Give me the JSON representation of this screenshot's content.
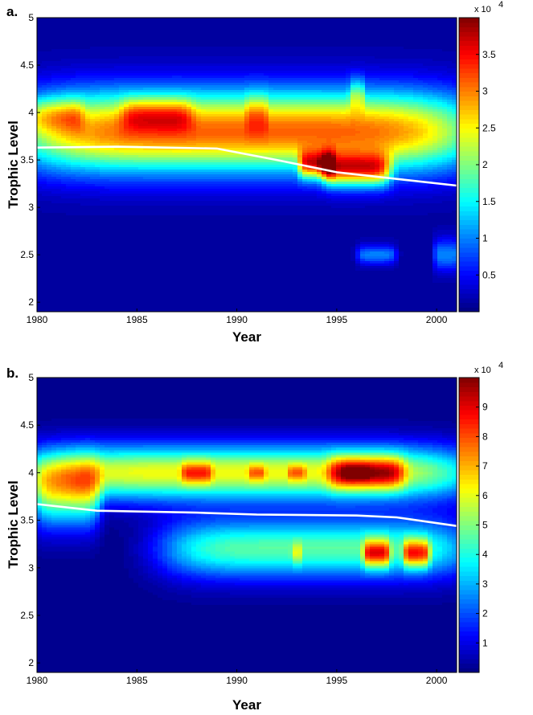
{
  "chart_data": [
    {
      "panel_label": "a.",
      "type": "heatmap",
      "xlabel": "Year",
      "ylabel": "Trophic Level",
      "xlim": [
        1980,
        2001
      ],
      "ylim": [
        1.9,
        5
      ],
      "xticks": [
        1980,
        1985,
        1990,
        1995,
        2000
      ],
      "yticks": [
        2,
        2.5,
        3,
        3.5,
        4,
        4.5,
        5
      ],
      "colorbar": {
        "range": [
          0,
          40000
        ],
        "ticks": [
          0.5,
          1,
          1.5,
          2,
          2.5,
          3,
          3.5
        ],
        "multiplier_label": "x 10",
        "multiplier_exponent": "4"
      },
      "blobs": [
        {
          "x": 1990.5,
          "y": 3.8,
          "sx": 10.5,
          "sy": 0.3,
          "v": 30000
        },
        {
          "x": 1981,
          "y": 3.97,
          "sx": 1.2,
          "sy": 0.12,
          "v": 9000
        },
        {
          "x": 1986,
          "y": 3.98,
          "sx": 1.6,
          "sy": 0.12,
          "v": 9000
        },
        {
          "x": 1991,
          "y": 4.0,
          "sx": 0.5,
          "sy": 0.15,
          "v": 5000
        },
        {
          "x": 1996,
          "y": 3.4,
          "sx": 1.5,
          "sy": 0.12,
          "v": 23000
        },
        {
          "x": 1994,
          "y": 3.45,
          "sx": 0.8,
          "sy": 0.1,
          "v": 20000
        },
        {
          "x": 1996,
          "y": 4.2,
          "sx": 0.35,
          "sy": 0.12,
          "v": 7000
        },
        {
          "x": 1997,
          "y": 2.5,
          "sx": 0.9,
          "sy": 0.07,
          "v": 9000
        },
        {
          "x": 2000.5,
          "y": 2.5,
          "sx": 0.6,
          "sy": 0.12,
          "v": 9000
        }
      ],
      "mean_trophic_level": {
        "x": [
          1980,
          1984,
          1989,
          1992,
          1995,
          1998,
          2001
        ],
        "y": [
          3.63,
          3.64,
          3.62,
          3.5,
          3.37,
          3.3,
          3.23
        ]
      }
    },
    {
      "panel_label": "b.",
      "type": "heatmap",
      "xlabel": "Year",
      "ylabel": "Trophic Level",
      "xlim": [
        1980,
        2001
      ],
      "ylim": [
        1.9,
        5
      ],
      "xticks": [
        1980,
        1985,
        1990,
        1995,
        2000
      ],
      "yticks": [
        2,
        2.5,
        3,
        3.5,
        4,
        4.5,
        5
      ],
      "colorbar": {
        "range": [
          0,
          100000
        ],
        "ticks": [
          1,
          2,
          3,
          4,
          5,
          6,
          7,
          8,
          9
        ],
        "multiplier_label": "x 10",
        "multiplier_exponent": "4"
      },
      "blobs": [
        {
          "x": 1990.5,
          "y": 4.0,
          "sx": 10.5,
          "sy": 0.2,
          "v": 60000
        },
        {
          "x": 1981.5,
          "y": 3.75,
          "sx": 1.5,
          "sy": 0.25,
          "v": 40000
        },
        {
          "x": 1994,
          "y": 3.2,
          "sx": 7,
          "sy": 0.22,
          "v": 45000
        },
        {
          "x": 1988,
          "y": 4.0,
          "sx": 0.7,
          "sy": 0.08,
          "v": 25000
        },
        {
          "x": 1991,
          "y": 4.0,
          "sx": 0.4,
          "sy": 0.06,
          "v": 18000
        },
        {
          "x": 1993,
          "y": 4.0,
          "sx": 0.4,
          "sy": 0.06,
          "v": 18000
        },
        {
          "x": 1996.5,
          "y": 4.0,
          "sx": 1.7,
          "sy": 0.12,
          "v": 40000
        },
        {
          "x": 1996,
          "y": 4.0,
          "sx": 0.6,
          "sy": 0.05,
          "v": 15000
        },
        {
          "x": 1997,
          "y": 3.15,
          "sx": 0.6,
          "sy": 0.1,
          "v": 45000
        },
        {
          "x": 1999,
          "y": 3.15,
          "sx": 0.6,
          "sy": 0.1,
          "v": 45000
        },
        {
          "x": 1993,
          "y": 3.15,
          "sx": 0.25,
          "sy": 0.08,
          "v": 15000
        }
      ],
      "mean_trophic_level": {
        "x": [
          1980,
          1983,
          1988,
          1991,
          1996,
          1998,
          2001
        ],
        "y": [
          3.67,
          3.6,
          3.58,
          3.56,
          3.55,
          3.53,
          3.44
        ]
      }
    }
  ]
}
